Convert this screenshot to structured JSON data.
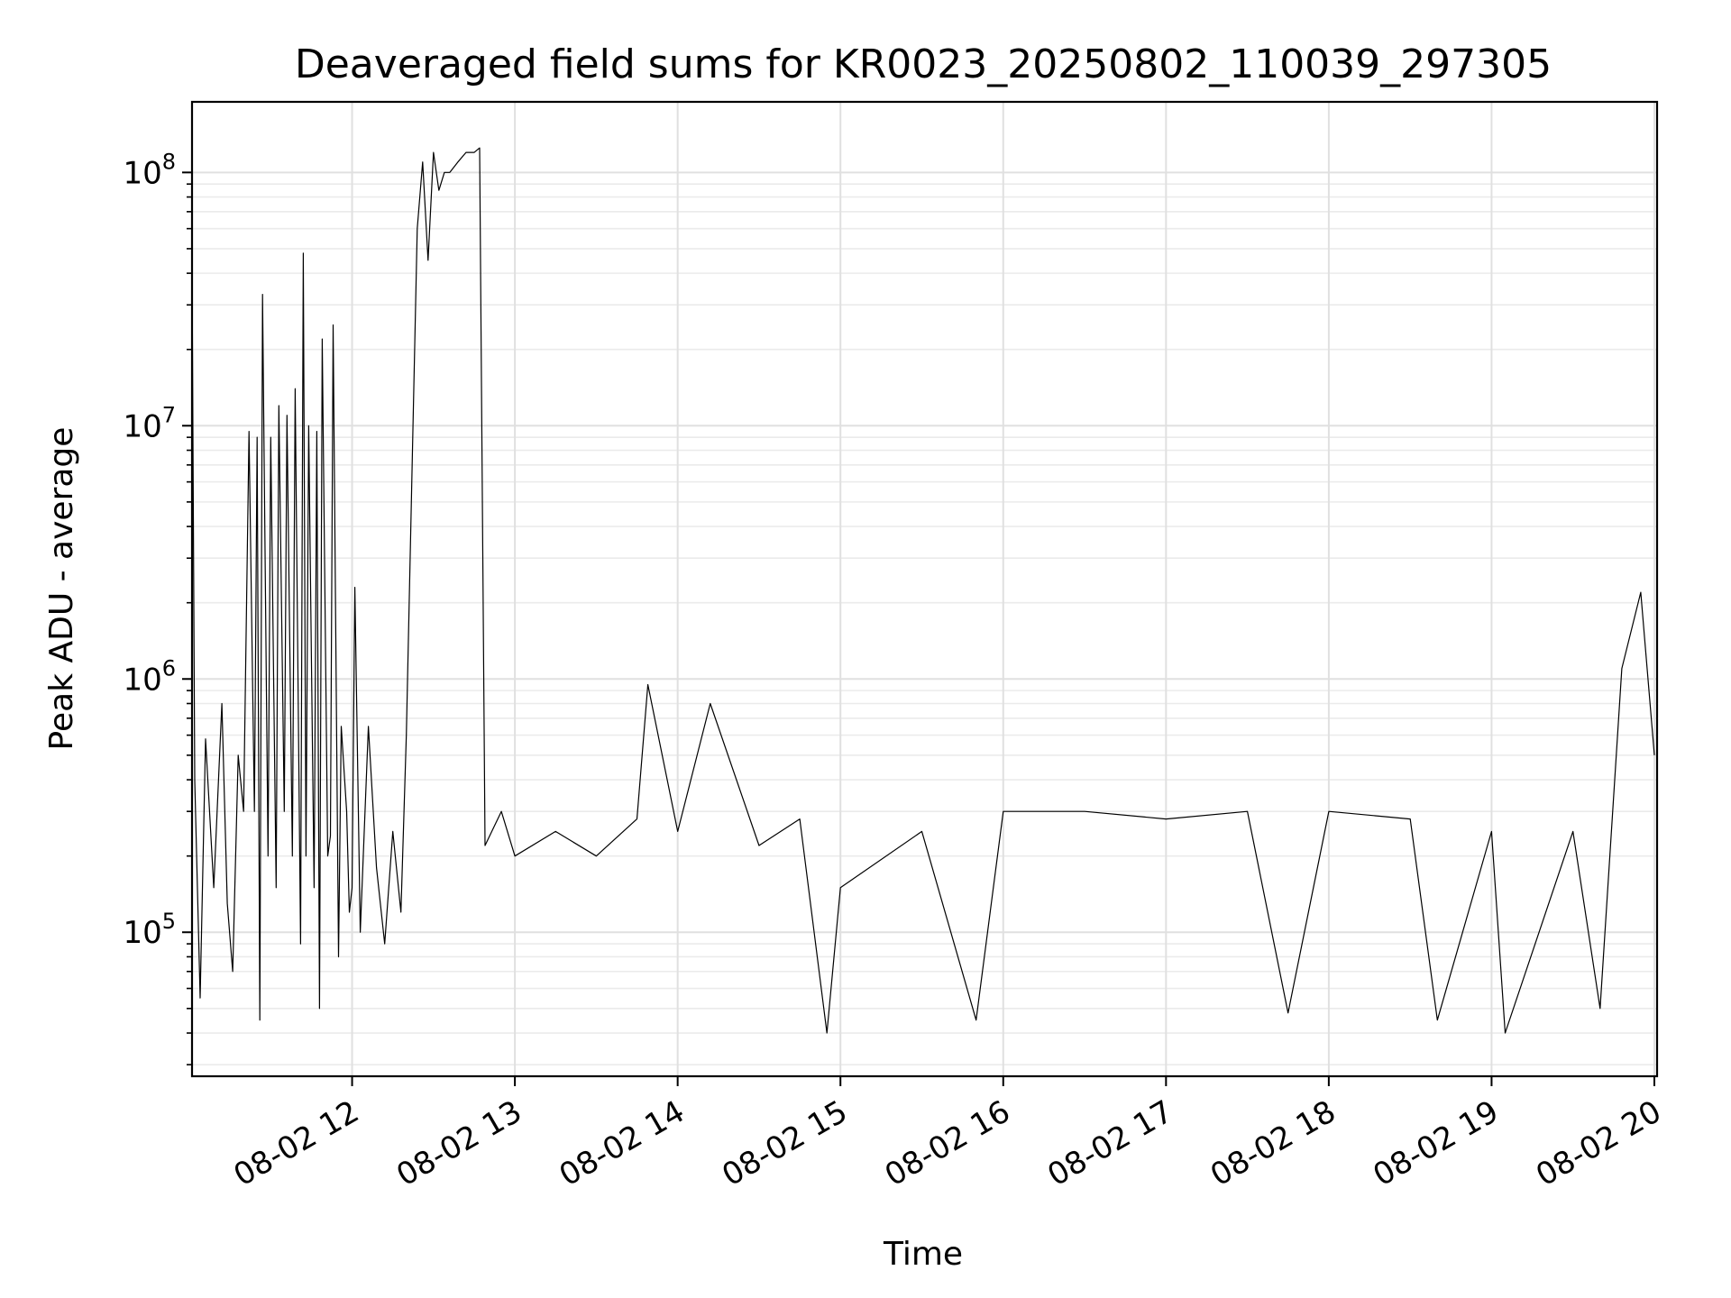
{
  "chart_data": {
    "type": "line",
    "title": "Deaveraged field sums for KR0023_20250802_110039_297305",
    "xlabel": "Time",
    "ylabel": "Peak ADU - average",
    "y_scale": "log",
    "ylim": [
      27000,
      190000000
    ],
    "xlim_hours": [
      "08-02 11:01",
      "08-02 20:01"
    ],
    "x_ticks": [
      {
        "hour": 12,
        "label": "08-02 12"
      },
      {
        "hour": 13,
        "label": "08-02 13"
      },
      {
        "hour": 14,
        "label": "08-02 14"
      },
      {
        "hour": 15,
        "label": "08-02 15"
      },
      {
        "hour": 16,
        "label": "08-02 16"
      },
      {
        "hour": 17,
        "label": "08-02 17"
      },
      {
        "hour": 18,
        "label": "08-02 18"
      },
      {
        "hour": 19,
        "label": "08-02 19"
      },
      {
        "hour": 20,
        "label": "08-02 20"
      }
    ],
    "y_ticks": [
      {
        "value": 100000,
        "base": "10",
        "exp": "5"
      },
      {
        "value": 1000000,
        "base": "10",
        "exp": "6"
      },
      {
        "value": 10000000,
        "base": "10",
        "exp": "7"
      },
      {
        "value": 100000000,
        "base": "10",
        "exp": "8"
      }
    ],
    "grid": true,
    "line_color": "#000000",
    "series": [
      {
        "name": "",
        "points": [
          [
            "08-02 11:01",
            44000000.0
          ],
          [
            "08-02 11:02",
            400000.0
          ],
          [
            "08-02 11:04",
            55000.0
          ],
          [
            "08-02 11:06",
            580000.0
          ],
          [
            "08-02 11:09",
            150000.0
          ],
          [
            "08-02 11:12",
            800000.0
          ],
          [
            "08-02 11:14",
            130000.0
          ],
          [
            "08-02 11:16",
            70000.0
          ],
          [
            "08-02 11:18",
            500000.0
          ],
          [
            "08-02 11:20",
            300000.0
          ],
          [
            "08-02 11:22",
            9500000.0
          ],
          [
            "08-02 11:24",
            300000.0
          ],
          [
            "08-02 11:25",
            9000000.0
          ],
          [
            "08-02 11:26",
            45000.0
          ],
          [
            "08-02 11:27",
            33000000.0
          ],
          [
            "08-02 11:29",
            200000.0
          ],
          [
            "08-02 11:30",
            9000000.0
          ],
          [
            "08-02 11:32",
            150000.0
          ],
          [
            "08-02 11:33",
            12000000.0
          ],
          [
            "08-02 11:35",
            300000.0
          ],
          [
            "08-02 11:36",
            11000000.0
          ],
          [
            "08-02 11:38",
            200000.0
          ],
          [
            "08-02 11:39",
            14000000.0
          ],
          [
            "08-02 11:41",
            90000.0
          ],
          [
            "08-02 11:42",
            48000000.0
          ],
          [
            "08-02 11:43",
            200000.0
          ],
          [
            "08-02 11:44",
            10000000.0
          ],
          [
            "08-02 11:46",
            150000.0
          ],
          [
            "08-02 11:47",
            9500000.0
          ],
          [
            "08-02 11:48",
            50000.0
          ],
          [
            "08-02 11:49",
            22000000.0
          ],
          [
            "08-02 11:51",
            200000.0
          ],
          [
            "08-02 11:53",
            25000000.0
          ],
          [
            "08-02 11:55",
            80000.0
          ],
          [
            "08-02 11:58",
            300000.0
          ],
          [
            "08-02 12:00",
            150000.0
          ],
          [
            "08-02 11:52",
            240000.0
          ],
          [
            "08-02 11:56",
            650000.0
          ],
          [
            "08-02 11:59",
            120000.0
          ],
          [
            "08-02 12:01",
            2300000.0
          ],
          [
            "08-02 12:03",
            100000.0
          ],
          [
            "08-02 12:06",
            650000.0
          ],
          [
            "08-02 12:09",
            180000.0
          ],
          [
            "08-02 12:12",
            90000.0
          ],
          [
            "08-02 12:15",
            250000.0
          ],
          [
            "08-02 12:18",
            120000.0
          ],
          [
            "08-02 12:20",
            600000.0
          ],
          [
            "08-02 12:24",
            60000000.0
          ],
          [
            "08-02 12:26",
            110000000.0
          ],
          [
            "08-02 12:28",
            45000000.0
          ],
          [
            "08-02 12:30",
            120000000.0
          ],
          [
            "08-02 12:32",
            85000000.0
          ],
          [
            "08-02 12:34",
            100000000.0
          ],
          [
            "08-02 12:36",
            100000000.0
          ],
          [
            "08-02 12:39",
            110000000.0
          ],
          [
            "08-02 12:42",
            120000000.0
          ],
          [
            "08-02 12:45",
            120000000.0
          ],
          [
            "08-02 12:47",
            125000000.0
          ],
          [
            "08-02 12:49",
            220000.0
          ],
          [
            "08-02 12:55",
            300000.0
          ],
          [
            "08-02 13:00",
            200000.0
          ],
          [
            "08-02 13:15",
            250000.0
          ],
          [
            "08-02 13:30",
            200000.0
          ],
          [
            "08-02 13:45",
            280000.0
          ],
          [
            "08-02 13:49",
            950000.0
          ],
          [
            "08-02 14:00",
            250000.0
          ],
          [
            "08-02 14:12",
            800000.0
          ],
          [
            "08-02 14:30",
            220000.0
          ],
          [
            "08-02 14:45",
            280000.0
          ],
          [
            "08-02 14:55",
            40000.0
          ],
          [
            "08-02 15:00",
            150000.0
          ],
          [
            "08-02 15:30",
            250000.0
          ],
          [
            "08-02 15:50",
            45000.0
          ],
          [
            "08-02 16:00",
            300000.0
          ],
          [
            "08-02 16:30",
            300000.0
          ],
          [
            "08-02 17:00",
            280000.0
          ],
          [
            "08-02 17:30",
            300000.0
          ],
          [
            "08-02 17:45",
            48000.0
          ],
          [
            "08-02 18:00",
            300000.0
          ],
          [
            "08-02 18:30",
            280000.0
          ],
          [
            "08-02 18:40",
            45000.0
          ],
          [
            "08-02 19:00",
            250000.0
          ],
          [
            "08-02 19:05",
            40000.0
          ],
          [
            "08-02 19:30",
            250000.0
          ],
          [
            "08-02 19:40",
            50000.0
          ],
          [
            "08-02 19:48",
            1100000.0
          ],
          [
            "08-02 19:55",
            2200000.0
          ],
          [
            "08-02 20:00",
            500000.0
          ]
        ]
      }
    ]
  }
}
